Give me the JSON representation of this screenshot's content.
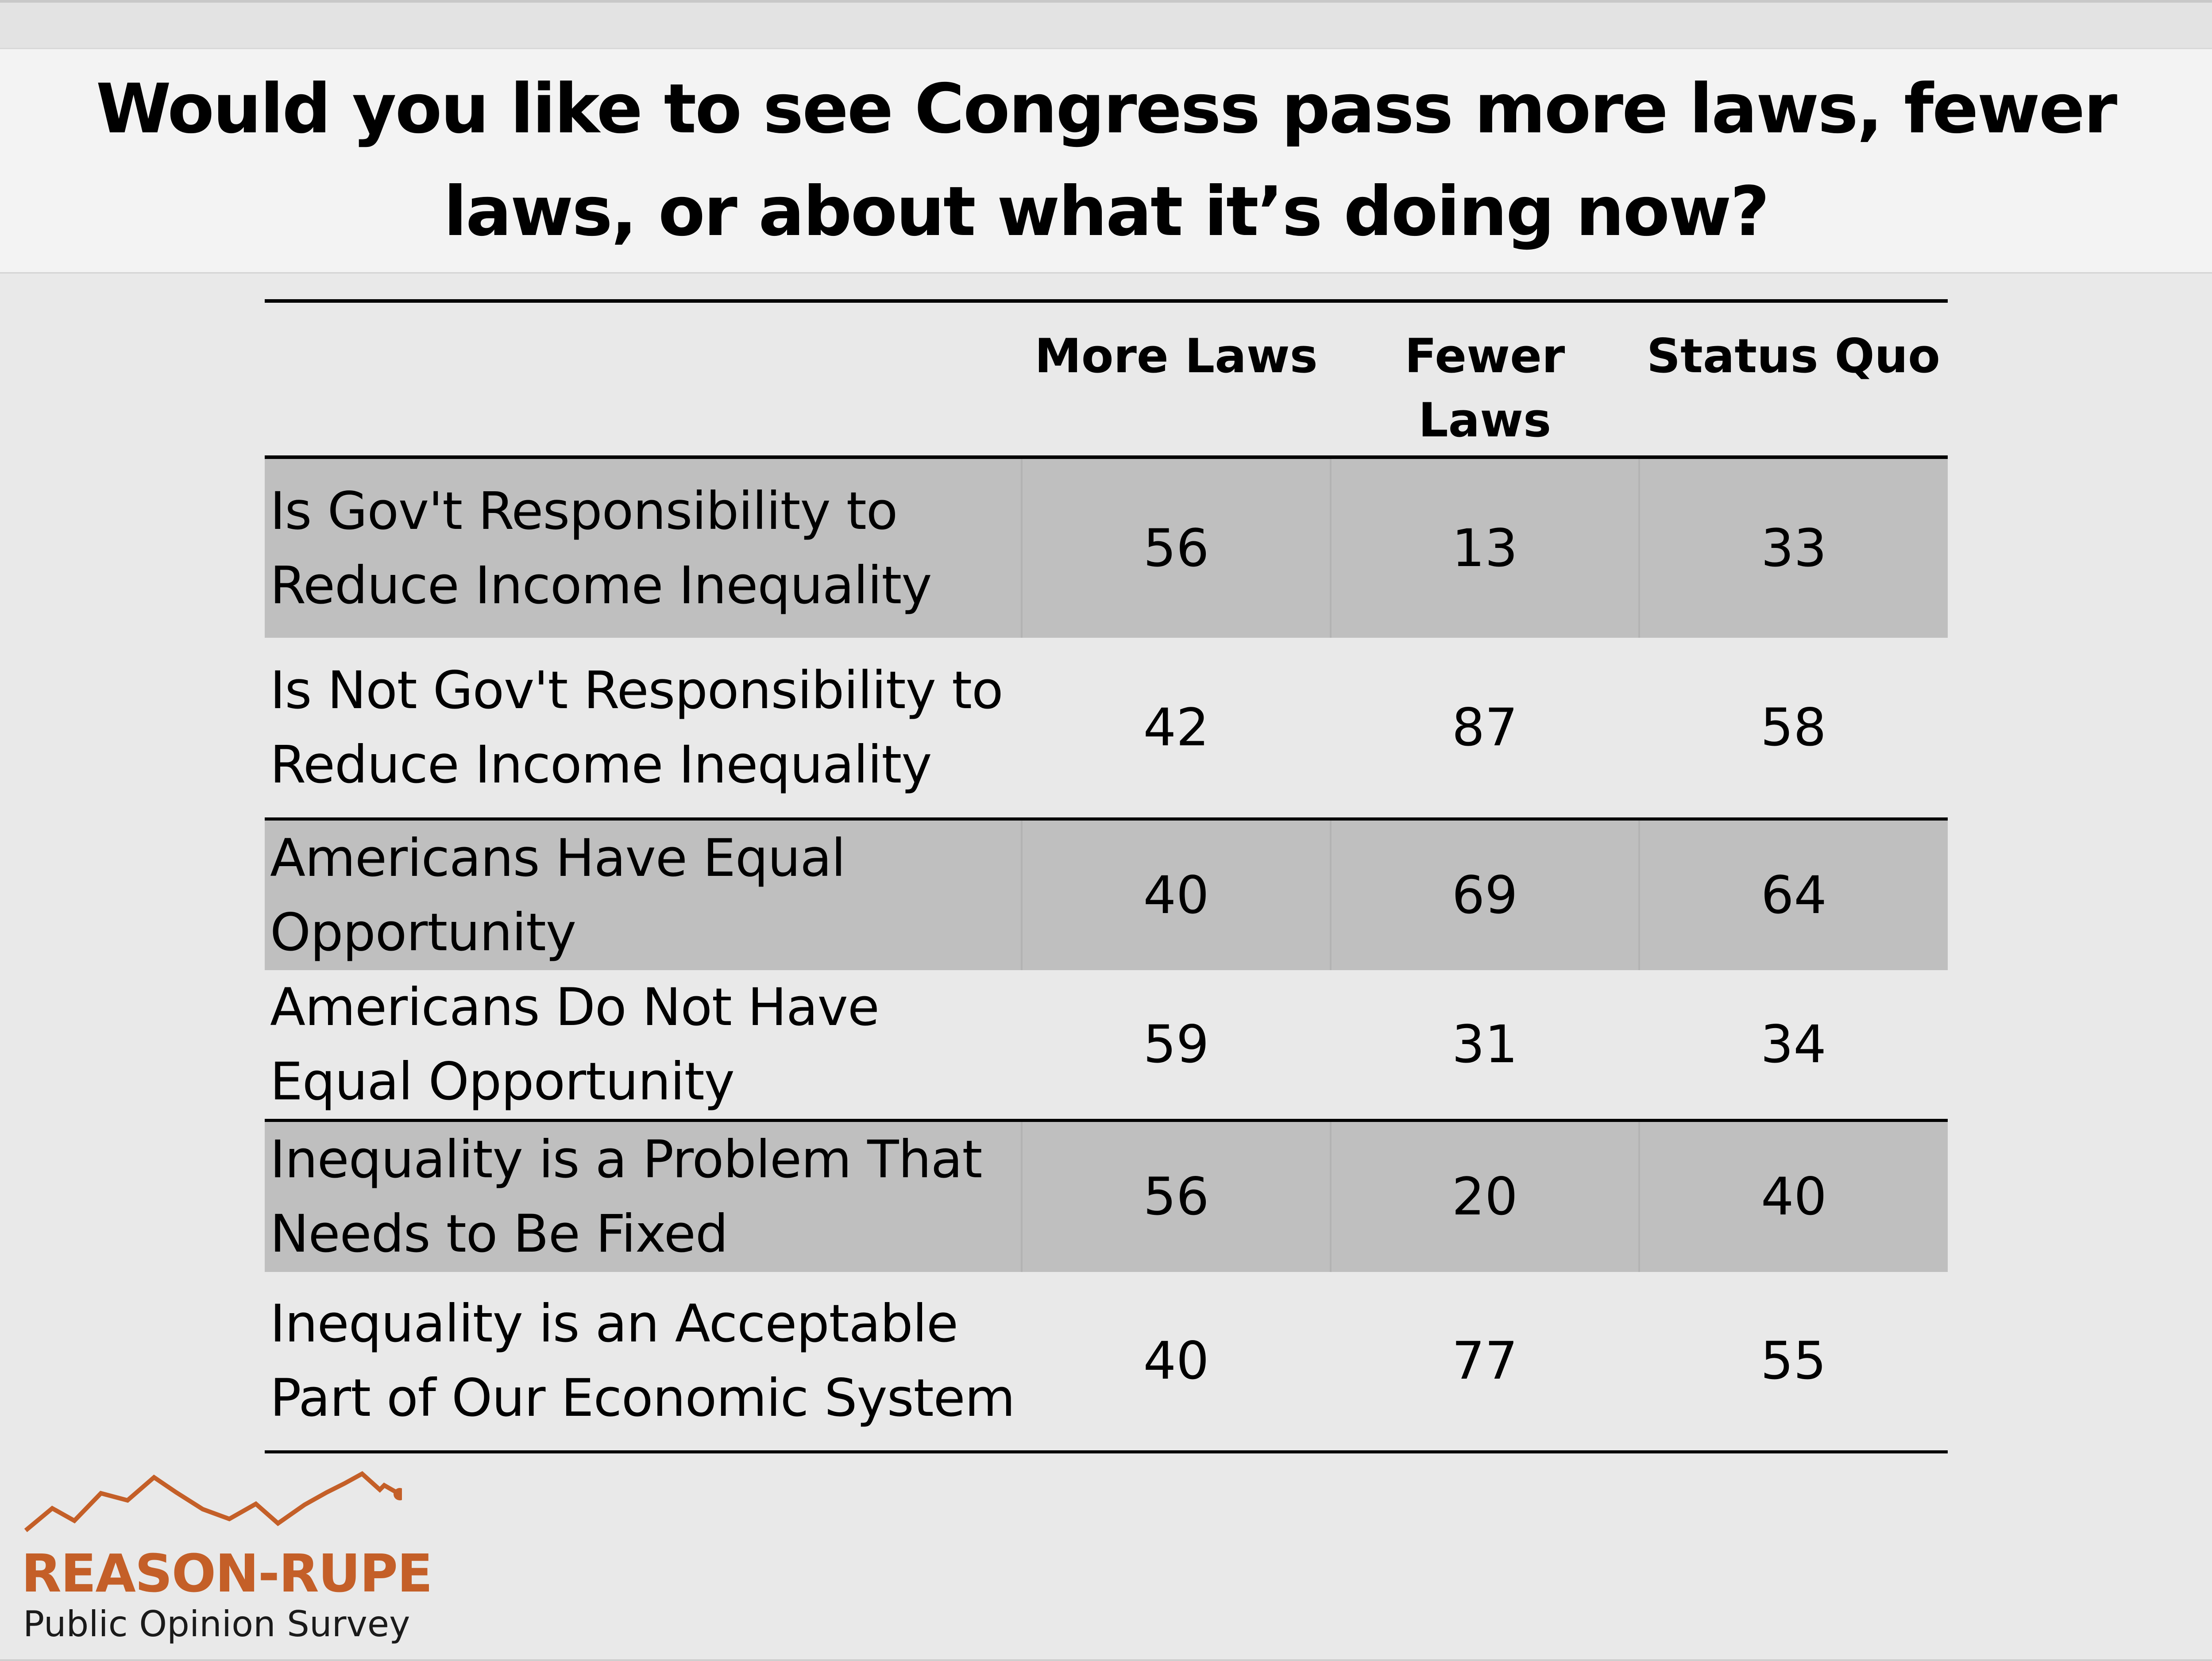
{
  "title": "Would you like to see Congress pass more laws, fewer laws, or about what it’s doing now?",
  "table": {
    "headers": [
      "",
      "More Laws",
      "Fewer Laws",
      "Status Quo"
    ],
    "rows": [
      {
        "label": "Is Gov't Responsibility to Reduce Income Inequality",
        "more": "56",
        "fewer": "13",
        "status_quo": "33"
      },
      {
        "label": "Is Not Gov't Responsibility to Reduce Income Inequality",
        "more": "42",
        "fewer": "87",
        "status_quo": "58"
      },
      {
        "label": "Americans Have Equal Opportunity",
        "more": "40",
        "fewer": "69",
        "status_quo": "64"
      },
      {
        "label": "Americans Do Not Have Equal Opportunity",
        "more": "59",
        "fewer": "31",
        "status_quo": "34"
      },
      {
        "label": "Inequality is a Problem That Needs to Be Fixed",
        "more": "56",
        "fewer": "20",
        "status_quo": "40"
      },
      {
        "label": "Inequality is an Acceptable Part of Our Economic System",
        "more": "40",
        "fewer": "77",
        "status_quo": "55"
      }
    ]
  },
  "logo": {
    "name": "REASON-RUPE",
    "subtitle": "Public Opinion Survey"
  },
  "colors": {
    "shaded_row": "#bfbfbf",
    "background": "#e9e9e9",
    "title_band": "#f3f3f3",
    "logo_orange": "#c45f28"
  }
}
